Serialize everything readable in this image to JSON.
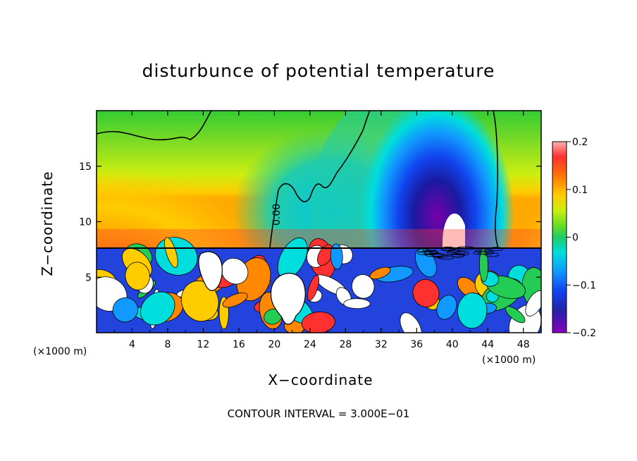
{
  "chart_data": {
    "type": "heatmap",
    "title": "disturbunce of potential temperature",
    "xlabel": "X−coordinate",
    "ylabel": "Z−coordinate",
    "x_unit_left": "(×1000 m)",
    "x_unit_right": "(×1000 m)",
    "xlim": [
      0,
      50
    ],
    "ylim": [
      0,
      20
    ],
    "xticks": [
      "4",
      "8",
      "12",
      "16",
      "20",
      "24",
      "28",
      "32",
      "36",
      "40",
      "44",
      "48"
    ],
    "xtick_values": [
      4,
      8,
      12,
      16,
      20,
      24,
      28,
      32,
      36,
      40,
      44,
      48
    ],
    "yticks": [
      "5",
      "10",
      "15"
    ],
    "ytick_values": [
      5,
      10,
      15
    ],
    "colorbar": {
      "ticks": [
        "0.2",
        "0.1",
        "0",
        "−0.1",
        "−0.2"
      ],
      "tick_values": [
        0.2,
        0.1,
        0,
        -0.1,
        -0.2
      ],
      "range": [
        -0.2,
        0.2
      ]
    },
    "contour_label": "0.00",
    "contour_interval_text": "CONTOUR INTERVAL = 3.000E−01"
  }
}
